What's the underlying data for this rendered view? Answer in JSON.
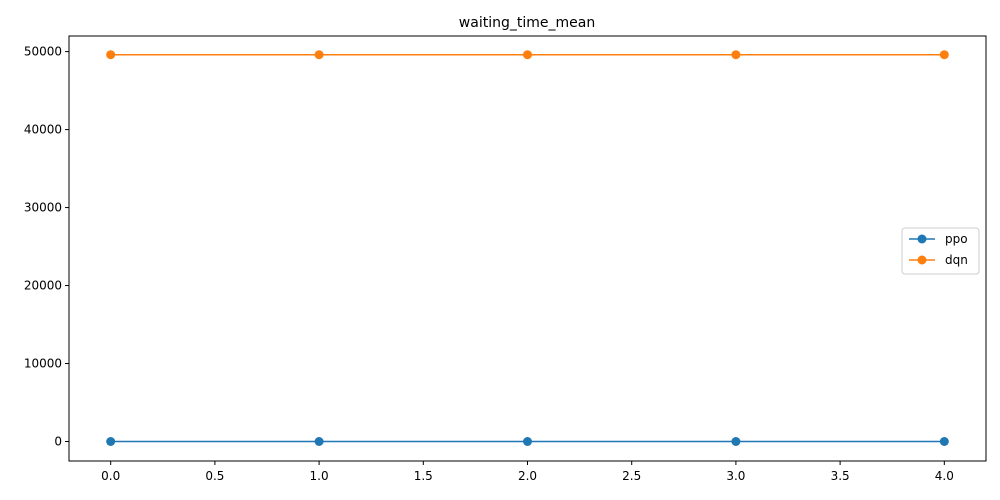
{
  "chart_data": {
    "type": "line",
    "title": "waiting_time_mean",
    "xlabel": "",
    "ylabel": "",
    "x": [
      0,
      1,
      2,
      3,
      4
    ],
    "xlim": [
      -0.2,
      4.2
    ],
    "ylim": [
      -2500,
      52000
    ],
    "xticks": [
      0.0,
      0.5,
      1.0,
      1.5,
      2.0,
      2.5,
      3.0,
      3.5,
      4.0
    ],
    "xtick_labels": [
      "0.0",
      "0.5",
      "1.0",
      "1.5",
      "2.0",
      "2.5",
      "3.0",
      "3.5",
      "4.0"
    ],
    "yticks": [
      0,
      10000,
      20000,
      30000,
      40000,
      50000
    ],
    "ytick_labels": [
      "0",
      "10000",
      "20000",
      "30000",
      "40000",
      "50000"
    ],
    "grid": false,
    "legend_position": "center-right",
    "series": [
      {
        "name": "ppo",
        "values": [
          0,
          0,
          0,
          0,
          0
        ],
        "color": "#1f77b4"
      },
      {
        "name": "dqn",
        "values": [
          49600,
          49600,
          49600,
          49600,
          49600
        ],
        "color": "#ff7f0e"
      }
    ]
  }
}
